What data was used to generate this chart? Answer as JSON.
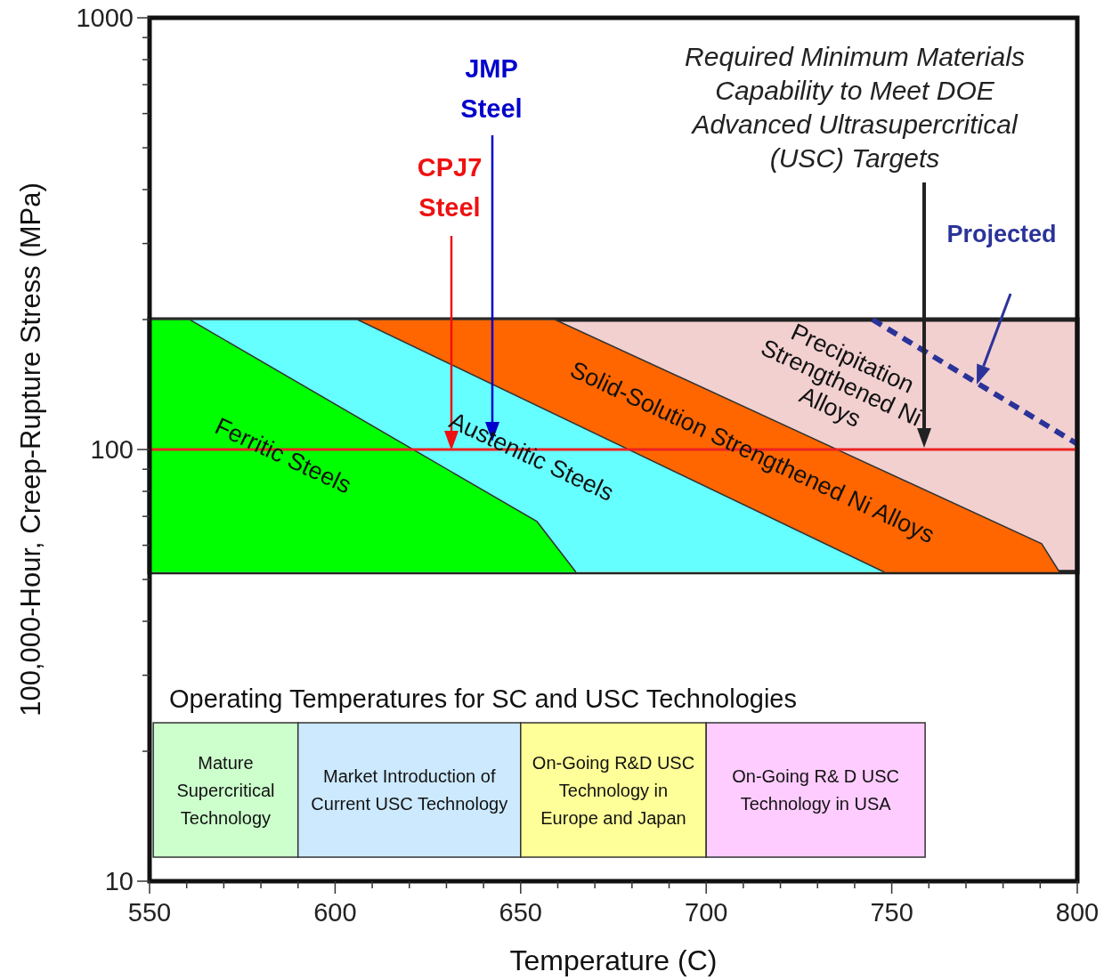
{
  "chart_data": {
    "type": "area",
    "xlabel": "Temperature (C)",
    "ylabel": "100,000-Hour, Creep-Rupture Stress (MPa)",
    "log": "y",
    "xlim": [
      550,
      800
    ],
    "ylim": [
      10,
      1000
    ],
    "xticks": [
      550,
      {
        "value": 560,
        "label": null
      },
      {
        "value": 570,
        "label": null
      },
      {
        "value": 580,
        "label": null
      },
      {
        "value": 590,
        "label": null
      },
      600,
      {
        "value": 610,
        "label": null
      },
      {
        "value": 620,
        "label": null
      },
      {
        "value": 630,
        "label": null
      },
      {
        "value": 640,
        "label": null
      },
      650,
      {
        "value": 660,
        "label": null
      },
      {
        "value": 670,
        "label": null
      },
      {
        "value": 680,
        "label": null
      },
      {
        "value": 690,
        "label": null
      },
      700,
      {
        "value": 710,
        "label": null
      },
      {
        "value": 720,
        "label": null
      },
      {
        "value": 730,
        "label": null
      },
      {
        "value": 740,
        "label": null
      },
      750,
      {
        "value": 760,
        "label": null
      },
      {
        "value": 770,
        "label": null
      },
      {
        "value": 780,
        "label": null
      },
      {
        "value": 790,
        "label": null
      },
      800
    ],
    "yticks": [
      10,
      {
        "value": 20,
        "label": null
      },
      {
        "value": 30,
        "label": null
      },
      {
        "value": 40,
        "label": null
      },
      {
        "value": 50,
        "label": null
      },
      {
        "value": 60,
        "label": null
      },
      {
        "value": 70,
        "label": null
      },
      {
        "value": 80,
        "label": null
      },
      {
        "value": 90,
        "label": null
      },
      100,
      {
        "value": 200,
        "label": null
      },
      {
        "value": 300,
        "label": null
      },
      {
        "value": 400,
        "label": null
      },
      {
        "value": 500,
        "label": null
      },
      {
        "value": 600,
        "label": null
      },
      {
        "value": 700,
        "label": null
      },
      {
        "value": 800,
        "label": null
      },
      {
        "value": 900,
        "label": null
      },
      1000
    ],
    "series": [
      {
        "name": "Solid-Solution Strengthened Ni Alloys",
        "color": "#ff6600",
        "x": [
          550,
          659.2,
          790.4,
          795.2
        ],
        "values": [
          200,
          200,
          60.5,
          52
        ]
      },
      {
        "name": "Austenitic Steels",
        "color": "#66ffff",
        "x": [
          550,
          606,
          748
        ],
        "values": [
          200,
          200,
          52
        ]
      },
      {
        "name": "Ferritic Steels",
        "color": "#00ff00",
        "x": [
          550,
          560.8,
          654.4,
          664.9
        ],
        "values": [
          200,
          200,
          68.1,
          52
        ]
      },
      {
        "type": "line",
        "color": "#2b3399",
        "line_style": "dashed",
        "x": [
          744.8,
          800
        ],
        "values": [
          200,
          103
        ]
      }
    ],
    "bands": [
      {
        "axis": "y",
        "from": 52,
        "to": 200,
        "label": "Precipitation Strengthened Ni Alloys",
        "color": "#f2d0d0"
      },
      {
        "axis": "x",
        "from": 551,
        "to": 590,
        "label": "Mature Supercritical Technology",
        "color": "#ccffcc"
      },
      {
        "axis": "x",
        "from": 590,
        "to": 650,
        "label": "Market Introduction of Current USC Technology",
        "color": "#cce9fd"
      },
      {
        "axis": "x",
        "from": 650,
        "to": 700,
        "label": "On-Going R&D USC Technology in Europe and Japan",
        "color": "#ffff99"
      },
      {
        "axis": "x",
        "from": 700,
        "to": 759,
        "label": "On-Going R& D USC Technology in USA",
        "color": "#ffccff"
      }
    ],
    "ref_lines": [
      {
        "axis": "y",
        "value": 100,
        "color": "#ee2222"
      }
    ],
    "annotations": [
      "CPJ7 Steel",
      "JMP Steel",
      "Required Minimum Materials Capability to Meet DOE Advanced Ultrasupercritical (USC) Targets",
      "Projected",
      "Operating Temperatures for SC and USC Technologies"
    ]
  }
}
